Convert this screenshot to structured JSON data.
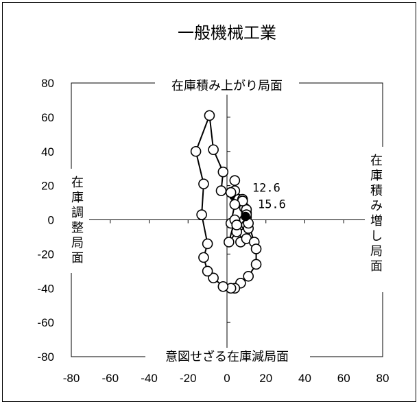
{
  "chart_data": {
    "type": "scatter",
    "title": "一般機械工業",
    "xlim": [
      -80,
      80
    ],
    "ylim": [
      -80,
      80
    ],
    "x_ticks": [
      "-80",
      "-60",
      "-40",
      "-20",
      "0",
      "20",
      "40",
      "60",
      "80"
    ],
    "y_ticks": [
      "80",
      "60",
      "40",
      "20",
      "0",
      "-20",
      "-40",
      "-60",
      "-80"
    ],
    "quadrant_labels": {
      "top": "在庫積み上がり局面",
      "right": "在庫積み増し局面",
      "bottom": "意図せざる在庫減局面",
      "left": "在庫調整局面"
    },
    "series": [
      {
        "points": [
          [
            3.5,
            14
          ],
          [
            4,
            23
          ],
          [
            4,
            17
          ],
          [
            6,
            12
          ],
          [
            8,
            12
          ],
          [
            9,
            7
          ],
          [
            10,
            4
          ],
          [
            10,
            1.5
          ],
          [
            10,
            6
          ],
          [
            8,
            11
          ],
          [
            10,
            3
          ],
          [
            9,
            0
          ],
          [
            10,
            -3
          ],
          [
            9,
            -8
          ],
          [
            7,
            -13
          ],
          [
            10,
            -11
          ],
          [
            11,
            -5
          ],
          [
            11,
            -2
          ],
          [
            14,
            -13
          ],
          [
            15,
            -17
          ],
          [
            15,
            -26
          ],
          [
            11,
            -33
          ],
          [
            7,
            -37
          ],
          [
            4,
            -40
          ],
          [
            2,
            -40
          ],
          [
            -2,
            -39
          ],
          [
            -7,
            -34
          ],
          [
            -10,
            -30
          ],
          [
            -12,
            -22
          ],
          [
            -10,
            -14
          ],
          [
            -13,
            3
          ],
          [
            -12,
            21
          ],
          [
            -16,
            40
          ],
          [
            -9,
            61
          ],
          [
            -7,
            41
          ],
          [
            -2,
            28
          ],
          [
            -3,
            17
          ],
          [
            2,
            16
          ],
          [
            4,
            9
          ],
          [
            2,
            -2
          ],
          [
            4,
            0
          ],
          [
            1,
            -13
          ],
          [
            5,
            -7
          ],
          [
            5,
            -3
          ],
          [
            9.5,
            2
          ]
        ],
        "highlighted": [
          [
            3.5,
            14
          ],
          [
            9.5,
            2
          ]
        ],
        "annotations": [
          {
            "label": "12.6",
            "x": 3.5,
            "y": 14
          },
          {
            "label": "15.6",
            "x": 9.5,
            "y": 2
          }
        ]
      }
    ]
  }
}
